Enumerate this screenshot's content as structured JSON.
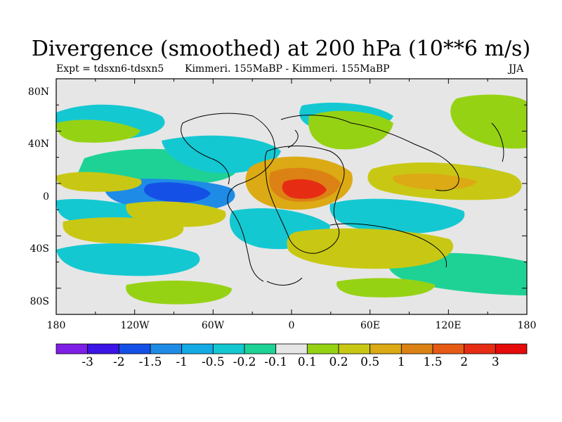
{
  "title": "Divergence (smoothed) at 200 hPa (10**6 m/s)",
  "subtitle_left": "Expt = tdsxn6-tdsxn5",
  "subtitle_center": "Kimmeri. 155MaBP - Kimmeri. 155MaBP",
  "subtitle_right": "JJA",
  "y_ticks": [
    "80N",
    "40N",
    "0",
    "40S",
    "80S"
  ],
  "x_ticks": [
    "180",
    "120W",
    "60W",
    "0",
    "60E",
    "120E",
    "180"
  ],
  "colorbar": {
    "labels": [
      "-3",
      "-2",
      "-1.5",
      "-1",
      "-0.5",
      "-0.2",
      "-0.1",
      "0.1",
      "0.2",
      "0.5",
      "1",
      "1.5",
      "2",
      "3"
    ],
    "colors": [
      "#7f1ee6",
      "#3c14e6",
      "#1450e6",
      "#1e8ce6",
      "#14aae6",
      "#14c8d2",
      "#1ed296",
      "#e6e6e6",
      "#96d214",
      "#c8c814",
      "#dcaa14",
      "#dc8214",
      "#e65a14",
      "#e62d14",
      "#e60a0a"
    ]
  },
  "colors": {
    "background": "#e6e6e6",
    "neg_strong": "#1450e6",
    "neg_mid": "#1e8ce6",
    "neg_weak": "#14c8d2",
    "neg_light": "#1ed296",
    "pos_light": "#96d214",
    "pos_mid": "#c8c814",
    "pos_orange": "#dcaa14",
    "pos_dark": "#dc8214",
    "pos_strong": "#e65a14",
    "pos_max": "#e62d14"
  }
}
